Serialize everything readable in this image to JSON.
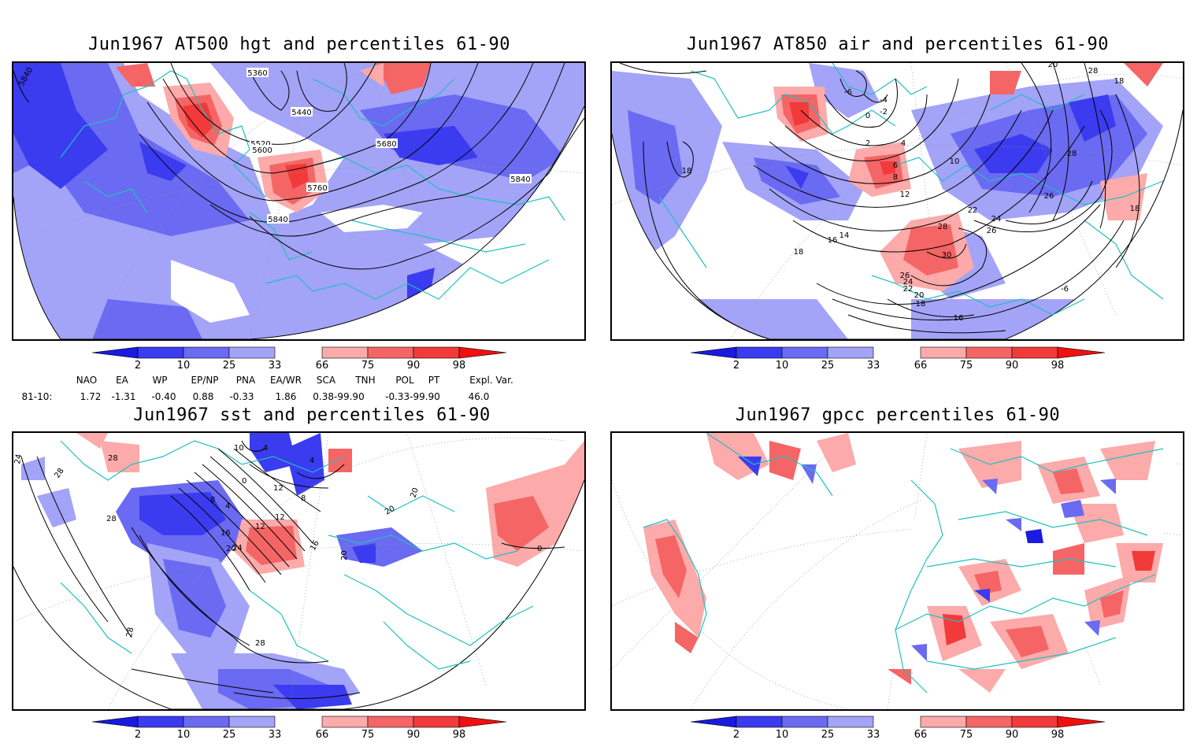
{
  "panels": [
    {
      "id": "p1",
      "title": "Jun1967 AT500 hgt and percentiles 61-90",
      "contour_labels": [
        "5360",
        "5440",
        "5520",
        "5600",
        "5680",
        "5760",
        "5840",
        "5840",
        "5840"
      ]
    },
    {
      "id": "p2",
      "title": "Jun1967 AT850 air and percentiles 61-90",
      "contour_labels": [
        "-6",
        "-4",
        "-2",
        "0",
        "2",
        "4",
        "6",
        "8",
        "10",
        "12",
        "14",
        "16",
        "16",
        "18",
        "18",
        "18",
        "18",
        "20",
        "20",
        "22",
        "22",
        "24",
        "24",
        "26",
        "26",
        "26",
        "28",
        "28",
        "28",
        "30",
        "18",
        "-6"
      ]
    },
    {
      "id": "p3",
      "title": "Jun1967 sst and percentiles 61-90",
      "contour_labels": [
        "24",
        "28",
        "28",
        "28",
        "12",
        "8",
        "4",
        "0",
        "16",
        "20",
        "12",
        "8",
        "4",
        "16",
        "12",
        "20",
        "20",
        "24",
        "28",
        "28",
        "0",
        "10",
        "4",
        "20"
      ]
    },
    {
      "id": "p4",
      "title": "Jun1967 gpcc percentiles 61-90",
      "contour_labels": []
    }
  ],
  "colorbar": {
    "labels": [
      "2",
      "10",
      "25",
      "33",
      "66",
      "75",
      "90",
      "98"
    ],
    "colors": {
      "blue_extreme": "#1a1ae0",
      "blue_2_10": "#3b3bf0",
      "blue_10_25": "#6a6af2",
      "blue_25_33": "#a3a3f8",
      "red_66_75": "#fcaaaa",
      "red_75_90": "#f56565",
      "red_90_98": "#f23a3a",
      "red_extreme": "#f01010"
    }
  },
  "indices": {
    "headers": [
      "NAO",
      "EA",
      "WP",
      "EP/NP",
      "PNA",
      "EA/WR",
      "SCA",
      "TNH",
      "POL",
      "PT",
      "Expl. Var."
    ],
    "row_label": "81-10:",
    "values": [
      "1.72",
      "-1.31",
      "-0.40",
      "0.88",
      "-0.33",
      "1.86",
      "0.38-99.90",
      "-0.33-99.90",
      "46.0"
    ]
  },
  "map_colors": {
    "coast": "#20c0c0",
    "contour": "#000000",
    "grid": "#9a9a9a"
  }
}
